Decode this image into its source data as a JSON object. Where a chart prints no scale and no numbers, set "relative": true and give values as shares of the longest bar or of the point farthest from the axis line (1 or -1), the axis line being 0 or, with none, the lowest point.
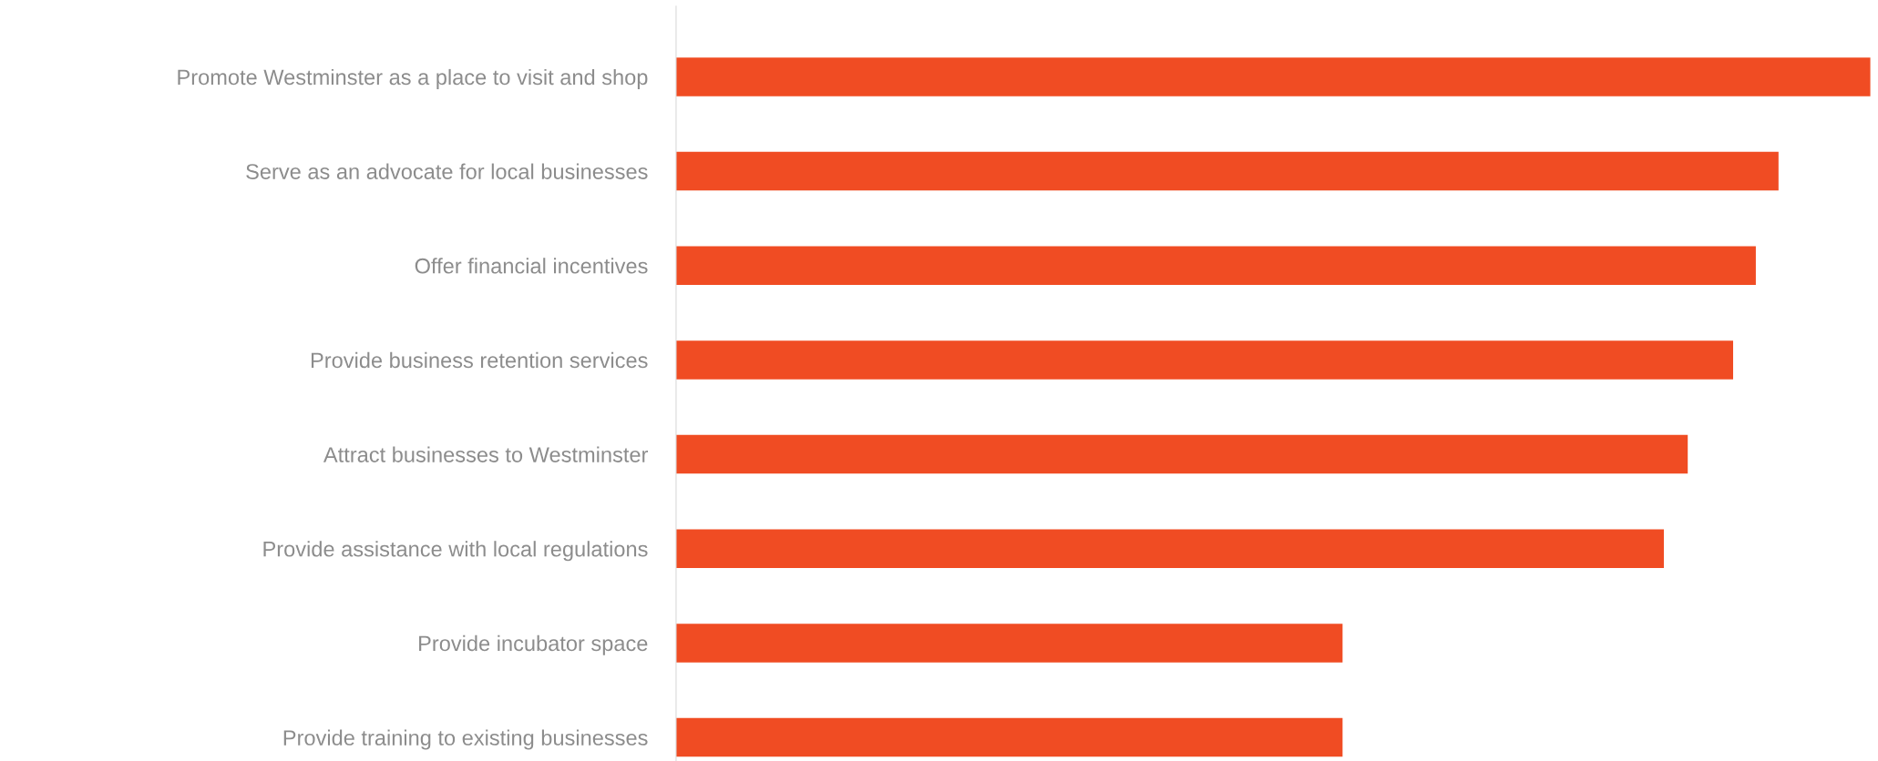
{
  "chart_data": {
    "type": "bar",
    "orientation": "horizontal",
    "relative": true,
    "categories": [
      "Promote Westminster as a place to visit and shop",
      "Serve as an advocate for local businesses",
      "Offer financial incentives",
      "Provide business retention services",
      "Attract businesses to Westminster",
      "Provide assistance with local regulations",
      "Provide incubator space",
      "Provide training to existing businesses"
    ],
    "values": [
      1,
      0.923,
      0.904,
      0.885,
      0.847,
      0.827,
      0.558,
      0.558
    ],
    "color": "#f04c23",
    "grid": false,
    "legend": false
  }
}
